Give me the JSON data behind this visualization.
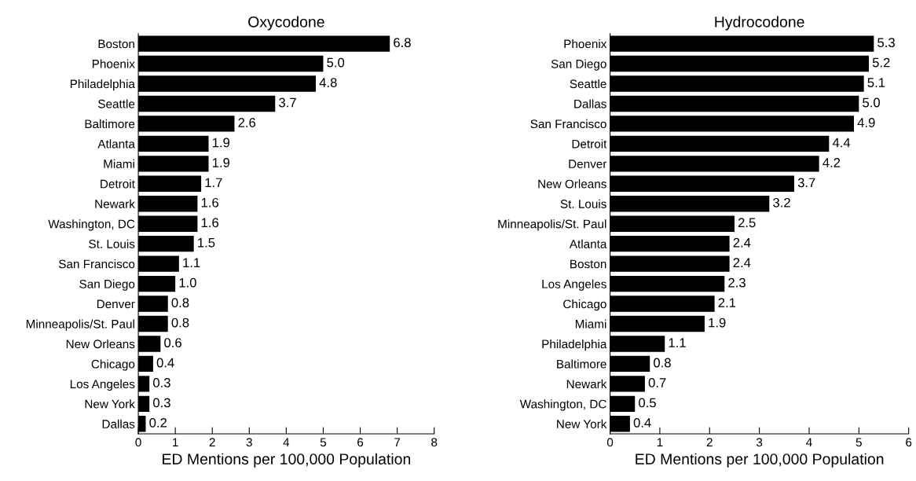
{
  "chart_data": [
    {
      "type": "bar",
      "orientation": "horizontal",
      "title": "Oxycodone",
      "xlabel": "ED Mentions per 100,000 Population",
      "categories": [
        "Boston",
        "Phoenix",
        "Philadelphia",
        "Seattle",
        "Baltimore",
        "Atlanta",
        "Miami",
        "Detroit",
        "Newark",
        "Washington, DC",
        "St. Louis",
        "San Francisco",
        "San Diego",
        "Denver",
        "Minneapolis/St. Paul",
        "New Orleans",
        "Chicago",
        "Los Angeles",
        "New York",
        "Dallas"
      ],
      "values": [
        6.8,
        5.0,
        4.8,
        3.7,
        2.6,
        1.9,
        1.9,
        1.7,
        1.6,
        1.6,
        1.5,
        1.1,
        1.0,
        0.8,
        0.8,
        0.6,
        0.4,
        0.3,
        0.3,
        0.2
      ],
      "value_labels": [
        "6.8",
        "5.0",
        "4.8",
        "3.7",
        "2.6",
        "1.9",
        "1.9",
        "1.7",
        "1.6",
        "1.6",
        "1.5",
        "1.1",
        "1.0",
        "0.8",
        "0.8",
        "0.6",
        "0.4",
        "0.3",
        "0.3",
        "0.2"
      ],
      "color": "#000000",
      "xlim": [
        0,
        8
      ],
      "xticks": [
        0,
        1,
        2,
        3,
        4,
        5,
        6,
        7,
        8
      ],
      "grid": false
    },
    {
      "type": "bar",
      "orientation": "horizontal",
      "title": "Hydrocodone",
      "xlabel": "ED Mentions per 100,000 Population",
      "categories": [
        "Phoenix",
        "San Diego",
        "Seattle",
        "Dallas",
        "San Francisco",
        "Detroit",
        "Denver",
        "New Orleans",
        "St. Louis",
        "Minneapolis/St. Paul",
        "Atlanta",
        "Boston",
        "Los Angeles",
        "Chicago",
        "Miami",
        "Philadelphia",
        "Baltimore",
        "Newark",
        "Washington, DC",
        "New York"
      ],
      "values": [
        5.3,
        5.2,
        5.1,
        5.0,
        4.9,
        4.4,
        4.2,
        3.7,
        3.2,
        2.5,
        2.4,
        2.4,
        2.3,
        2.1,
        1.9,
        1.1,
        0.8,
        0.7,
        0.5,
        0.4
      ],
      "value_labels": [
        "5.3",
        "5.2",
        "5.1",
        "5.0",
        "4.9",
        "4.4",
        "4.2",
        "3.7",
        "3.2",
        "2.5",
        "2.4",
        "2.4",
        "2.3",
        "2.1",
        "1.9",
        "1.1",
        "0.8",
        "0.7",
        "0.5",
        "0.4"
      ],
      "color": "#000000",
      "xlim": [
        0,
        6
      ],
      "xticks": [
        0,
        1,
        2,
        3,
        4,
        5,
        6
      ],
      "grid": false
    }
  ]
}
